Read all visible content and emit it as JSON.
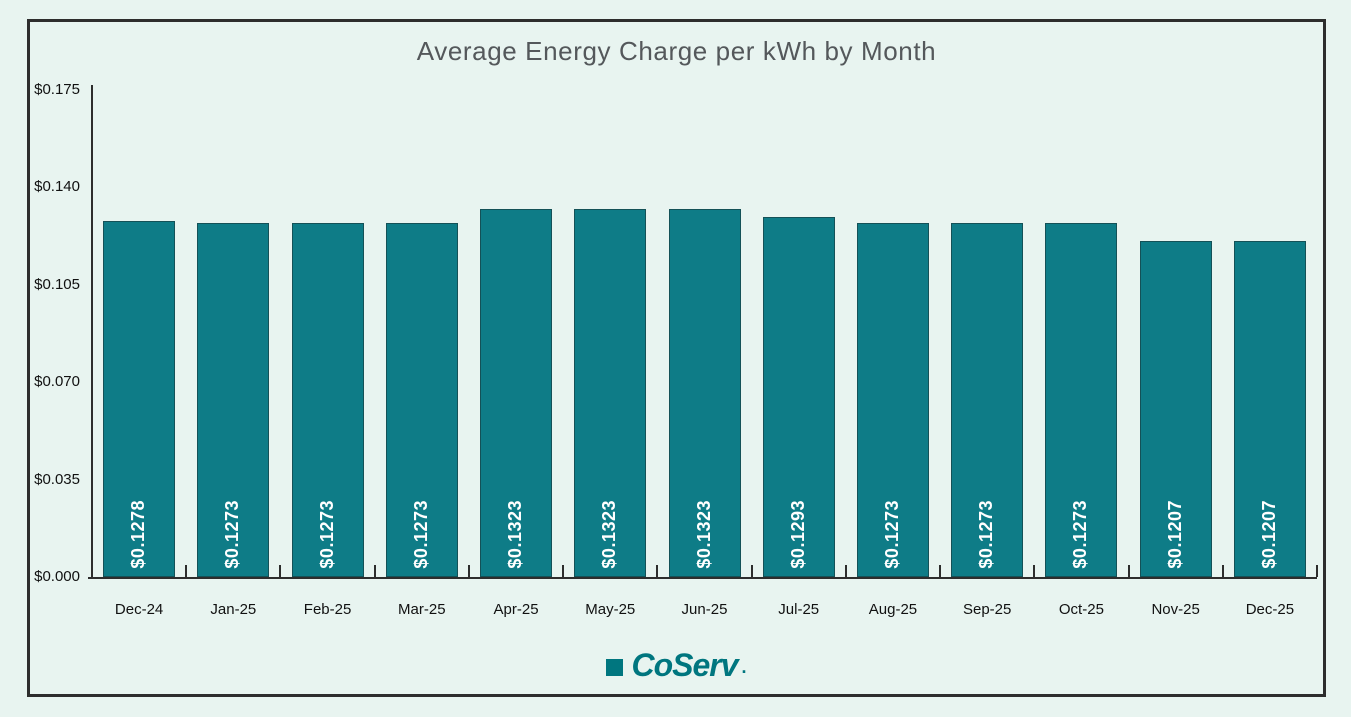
{
  "title": "Average Energy Charge per kWh by Month",
  "logo": {
    "text": "CoServ",
    "suffix": "."
  },
  "colors": {
    "background": "#e8f4f0",
    "frame_border": "#2d2d2d",
    "axis": "#2d2d2d",
    "bar_fill": "#0e7c87",
    "title_text": "#54585b",
    "axis_label_text": "#111111",
    "value_label_text": "#ffffff",
    "logo_teal": "#00767f"
  },
  "chart_data": {
    "type": "bar",
    "title": "Average Energy Charge per kWh by Month",
    "categories": [
      "Dec-24",
      "Jan-25",
      "Feb-25",
      "Mar-25",
      "Apr-25",
      "May-25",
      "Jun-25",
      "Jul-25",
      "Aug-25",
      "Sep-25",
      "Oct-25",
      "Nov-25",
      "Dec-25"
    ],
    "values": [
      0.1278,
      0.1273,
      0.1273,
      0.1273,
      0.1323,
      0.1323,
      0.1323,
      0.1293,
      0.1273,
      0.1273,
      0.1273,
      0.1207,
      0.1207
    ],
    "value_labels": [
      "$0.1278",
      "$0.1273",
      "$0.1273",
      "$0.1273",
      "$0.1323",
      "$0.1323",
      "$0.1323",
      "$0.1293",
      "$0.1273",
      "$0.1273",
      "$0.1273",
      "$0.1207",
      "$0.1207"
    ],
    "xlabel": "",
    "ylabel": "",
    "ylim": [
      0,
      0.175
    ],
    "y_tick_values": [
      0.175,
      0.14,
      0.105,
      0.07,
      0.035,
      0.0
    ],
    "y_tick_labels": [
      "$0.175",
      "$0.140",
      "$0.105",
      "$0.070",
      "$0.035",
      "$0.000"
    ],
    "grid": false,
    "legend_position": "none",
    "bar_color": "#0e7c87"
  }
}
